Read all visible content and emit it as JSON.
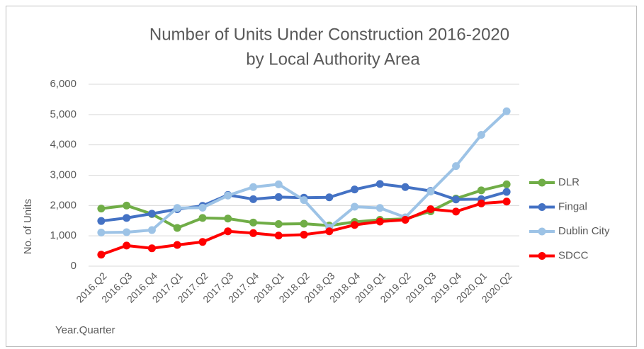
{
  "chart_data": {
    "type": "line",
    "title": [
      "Number of Units Under Construction 2016-2020",
      "by Local Authority Area"
    ],
    "x_label": "Year.Quarter",
    "y_label": "No. of Units",
    "categories": [
      "2016.Q2",
      "2016.Q3",
      "2016.Q4",
      "2017.Q1",
      "2017.Q2",
      "2017.Q3",
      "2017.Q4",
      "2018.Q1",
      "2018.Q2",
      "2018.Q3",
      "2018.Q4",
      "2019.Q1",
      "2019.Q2",
      "2019.Q3",
      "2019.Q4",
      "2020.Q1",
      "2020.Q2"
    ],
    "series": [
      {
        "name": "DLR",
        "color": "#70ad47",
        "values": [
          1900,
          2000,
          1720,
          1260,
          1590,
          1570,
          1440,
          1390,
          1400,
          1340,
          1460,
          1530,
          1560,
          1810,
          2230,
          2500,
          2700
        ]
      },
      {
        "name": "Fingal",
        "color": "#4472c4",
        "values": [
          1490,
          1590,
          1730,
          1880,
          1990,
          2350,
          2210,
          2280,
          2260,
          2270,
          2530,
          2710,
          2610,
          2480,
          2200,
          2210,
          2450
        ]
      },
      {
        "name": "Dublin City",
        "color": "#9dc3e6",
        "values": [
          1110,
          1120,
          1190,
          1920,
          1930,
          2330,
          2610,
          2700,
          2180,
          1270,
          1960,
          1920,
          1610,
          2460,
          3300,
          4330,
          5110
        ]
      },
      {
        "name": "SDCC",
        "color": "#ff0000",
        "values": [
          380,
          680,
          590,
          700,
          800,
          1150,
          1090,
          1010,
          1040,
          1150,
          1360,
          1470,
          1530,
          1880,
          1800,
          2070,
          2130
        ]
      }
    ],
    "ylim": [
      0,
      6000
    ],
    "yticks": [
      0,
      {
        "value": 1000,
        "label": "1,000"
      },
      {
        "value": 2000,
        "label": "2,000"
      },
      {
        "value": 3000,
        "label": "3,000"
      },
      {
        "value": 4000,
        "label": "4,000"
      },
      {
        "value": 5000,
        "label": "5,000"
      },
      {
        "value": 6000,
        "label": "6,000"
      }
    ],
    "grid": true,
    "legend": "right"
  }
}
